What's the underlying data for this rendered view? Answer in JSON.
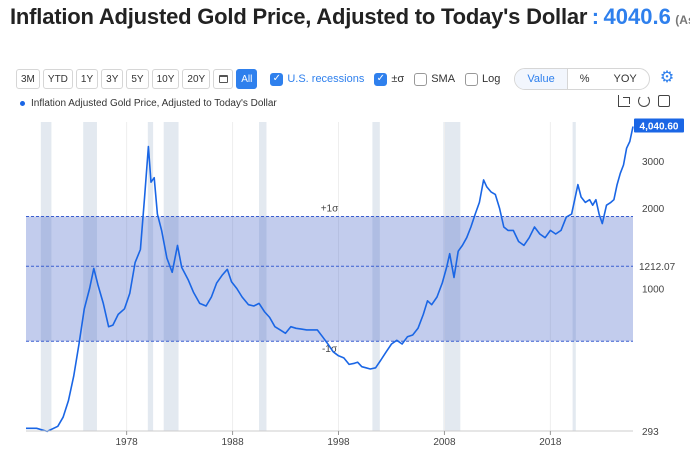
{
  "header": {
    "title": "Inflation Adjusted Gold Price, Adjusted to Today's Dollar",
    "separator": ":",
    "value": "4040.6",
    "suffix": "(As of"
  },
  "toolbar": {
    "ranges": [
      "3M",
      "YTD",
      "1Y",
      "3Y",
      "5Y",
      "10Y",
      "20Y"
    ],
    "all_label": "All",
    "recessions_label": "U.S. recessions",
    "sigma_label": "±σ",
    "sma_label": "SMA",
    "log_label": "Log",
    "modes": [
      "Value",
      "%",
      "YOY"
    ]
  },
  "legend": {
    "series_label": "Inflation Adjusted Gold Price, Adjusted to Today's Dollar"
  },
  "chart_data": {
    "type": "line",
    "title": "Inflation Adjusted Gold Price, Adjusted to Today's Dollar",
    "y_scale": "log",
    "ylim": [
      293,
      4200
    ],
    "xlim": [
      1968.5,
      2025.8
    ],
    "x_ticks": [
      1978,
      1988,
      1998,
      2008,
      2018
    ],
    "x_tick_labels": [
      "1978",
      "1988",
      "1998",
      "2008",
      "2018"
    ],
    "y_ticks": [
      293,
      1000,
      2000,
      3000
    ],
    "y_tick_labels": [
      "293",
      "1000",
      "2000",
      "3000"
    ],
    "mean": 1212.07,
    "mean_label": "1212.07",
    "plus_sigma": 1860,
    "minus_sigma": 635,
    "plus_sigma_label": "+1σ",
    "minus_sigma_label": "-1σ",
    "last_value": 4040.6,
    "last_value_label": "4,040.60",
    "recessions": [
      [
        1969.9,
        1970.9
      ],
      [
        1973.9,
        1975.2
      ],
      [
        1980.0,
        1980.5
      ],
      [
        1981.5,
        1982.9
      ],
      [
        1990.5,
        1991.2
      ],
      [
        2001.2,
        2001.9
      ],
      [
        2007.9,
        2009.5
      ],
      [
        2020.1,
        2020.4
      ]
    ],
    "series": [
      {
        "name": "Inflation Adjusted Gold Price, Adjusted to Today's Dollar",
        "x": [
          1968.5,
          1969.5,
          1970.5,
          1971.5,
          1972.0,
          1972.5,
          1973.0,
          1973.5,
          1974.0,
          1974.5,
          1974.9,
          1975.3,
          1975.8,
          1976.3,
          1976.7,
          1977.2,
          1977.8,
          1978.3,
          1978.8,
          1979.3,
          1979.7,
          1980.05,
          1980.3,
          1980.6,
          1980.9,
          1981.3,
          1981.8,
          1982.3,
          1982.8,
          1983.2,
          1983.8,
          1984.3,
          1984.9,
          1985.5,
          1986.0,
          1986.5,
          1987.0,
          1987.5,
          1987.9,
          1988.4,
          1988.9,
          1989.5,
          1990.0,
          1990.5,
          1991.0,
          1991.5,
          1992.0,
          1992.5,
          1993.0,
          1993.5,
          1994.0,
          1994.5,
          1995.0,
          1995.5,
          1996.0,
          1996.5,
          1997.0,
          1997.5,
          1998.0,
          1998.5,
          1999.0,
          1999.5,
          1999.8,
          2000.2,
          2000.6,
          2001.0,
          2001.5,
          2002.0,
          2002.5,
          2003.0,
          2003.5,
          2004.0,
          2004.5,
          2005.0,
          2005.5,
          2006.0,
          2006.4,
          2006.8,
          2007.3,
          2007.8,
          2008.2,
          2008.5,
          2008.9,
          2009.3,
          2009.7,
          2010.1,
          2010.5,
          2010.9,
          2011.3,
          2011.7,
          2012.0,
          2012.4,
          2012.8,
          2013.2,
          2013.6,
          2014.0,
          2014.5,
          2015.0,
          2015.5,
          2016.0,
          2016.5,
          2017.0,
          2017.5,
          2018.0,
          2018.5,
          2019.0,
          2019.5,
          2020.0,
          2020.3,
          2020.6,
          2020.9,
          2021.3,
          2021.7,
          2022.0,
          2022.3,
          2022.6,
          2022.9,
          2023.3,
          2023.7,
          2024.0,
          2024.3,
          2024.6,
          2024.9,
          2025.2,
          2025.5,
          2025.8
        ],
        "values": [
          300,
          300,
          292,
          305,
          330,
          380,
          470,
          620,
          840,
          1000,
          1190,
          1030,
          880,
          720,
          730,
          800,
          840,
          960,
          1250,
          1400,
          2200,
          3400,
          2500,
          2600,
          1900,
          1650,
          1300,
          1150,
          1450,
          1200,
          1080,
          970,
          880,
          860,
          930,
          1050,
          1120,
          1180,
          1060,
          1000,
          930,
          870,
          860,
          880,
          820,
          780,
          720,
          700,
          680,
          720,
          710,
          705,
          700,
          700,
          700,
          660,
          620,
          580,
          560,
          550,
          520,
          525,
          530,
          510,
          505,
          500,
          505,
          540,
          580,
          620,
          640,
          620,
          660,
          670,
          710,
          800,
          900,
          870,
          930,
          1050,
          1200,
          1350,
          1100,
          1380,
          1450,
          1550,
          1700,
          1900,
          2100,
          2550,
          2400,
          2300,
          2250,
          2000,
          1700,
          1650,
          1650,
          1500,
          1450,
          1550,
          1700,
          1600,
          1550,
          1650,
          1600,
          1650,
          1850,
          1900,
          2150,
          2450,
          2200,
          2100,
          2150,
          2050,
          2150,
          1900,
          1750,
          2050,
          2100,
          2150,
          2450,
          2700,
          2900,
          3350,
          3550,
          4040.6
        ]
      }
    ]
  }
}
